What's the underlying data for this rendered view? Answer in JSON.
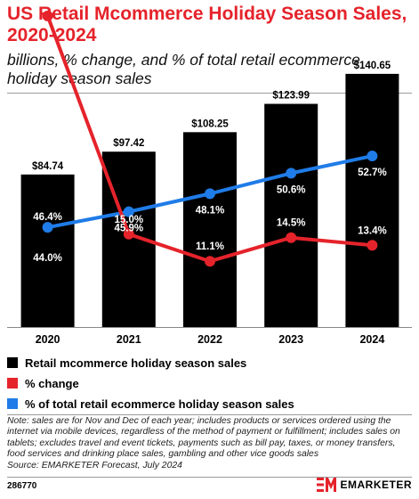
{
  "header": {
    "title": "US Retail Mcommerce Holiday Season Sales, 2020-2024",
    "subtitle": "billions, % change, and % of total retail ecommerce holiday season sales"
  },
  "chart_data": {
    "type": "bar",
    "categories": [
      "2020",
      "2021",
      "2022",
      "2023",
      "2024"
    ],
    "series": [
      {
        "name": "Retail mcommerce holiday season sales",
        "type": "bar",
        "values": [
          84.74,
          97.42,
          108.25,
          123.99,
          140.65
        ],
        "labels": [
          "$84.74",
          "$97.42",
          "$108.25",
          "$123.99",
          "$140.65"
        ],
        "color": "#000000"
      },
      {
        "name": "% change",
        "type": "line",
        "values": [
          46.4,
          15.0,
          11.1,
          14.5,
          13.4
        ],
        "labels": [
          "46.4%",
          "15.0%",
          "11.1%",
          "14.5%",
          "13.4%"
        ],
        "color": "#e5232b"
      },
      {
        "name": "% of total retail ecommerce holiday season sales",
        "type": "line",
        "values": [
          44.0,
          45.9,
          48.1,
          50.6,
          52.7
        ],
        "labels": [
          "44.0%",
          "45.9%",
          "48.1%",
          "50.6%",
          "52.7%"
        ],
        "color": "#1f7ce8"
      }
    ],
    "grid": false,
    "legend_position": "bottom-left"
  },
  "legend": [
    {
      "label": "Retail mcommerce holiday season sales",
      "color": "#000000"
    },
    {
      "label": "% change",
      "color": "#e5232b"
    },
    {
      "label": "% of total retail ecommerce holiday season sales",
      "color": "#1f7ce8"
    }
  ],
  "footer": {
    "note": "Note: sales are for Nov and Dec of each year; includes products or services ordered using the internet via mobile devices, regardless of the method of payment or fulfillment; includes sales on tablets; excludes travel and event tickets, payments such as bill pay, taxes, or money transfers, food services and drinking place sales, gambling and other vice goods sales",
    "source": "Source: EMARKETER Forecast, July 2024",
    "chart_id": "286770",
    "brand": "EMARKETER",
    "brand_icon": "em-logo-icon",
    "brand_color": "#e5232b"
  }
}
